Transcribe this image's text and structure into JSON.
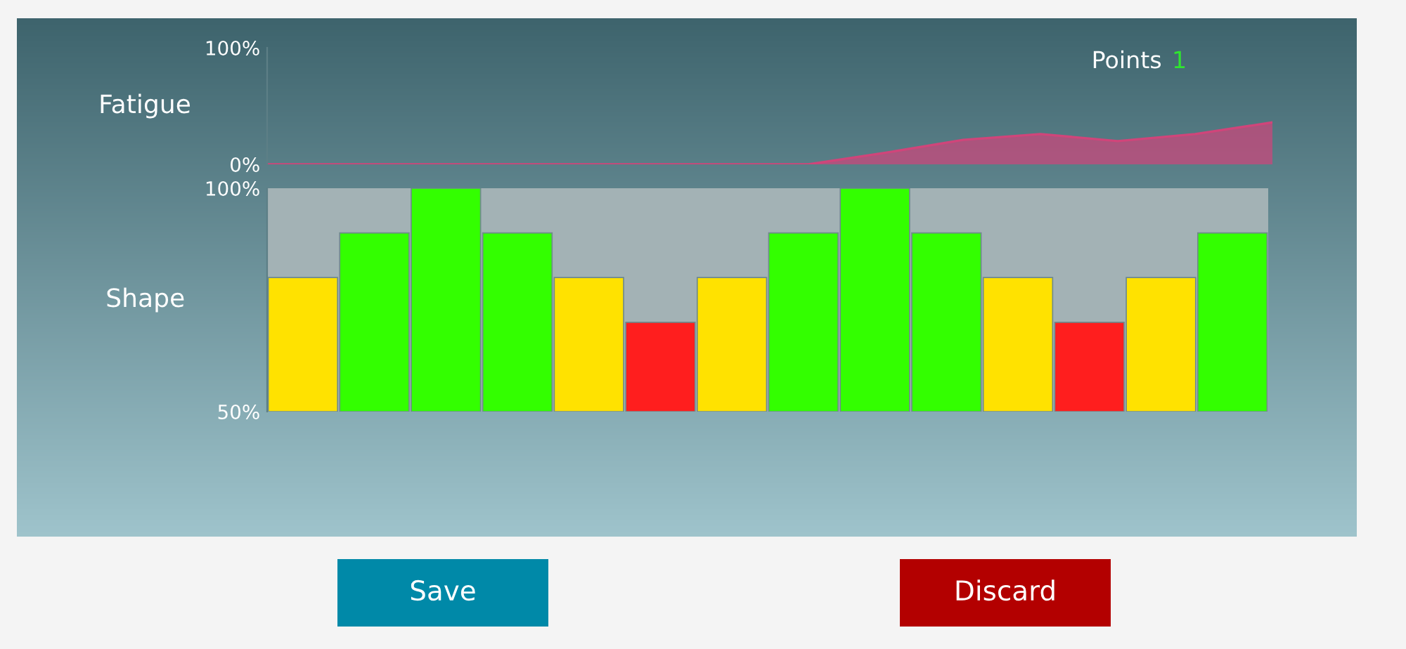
{
  "chart_data": [
    {
      "type": "area",
      "ylabel": "Fatigue",
      "categories": [
        null,
        null,
        null,
        null,
        null,
        null,
        null,
        null,
        null,
        null,
        null,
        null,
        null,
        null
      ],
      "series": [
        {
          "color": "#d0457a",
          "values": [
            0,
            0,
            0,
            0,
            0,
            0,
            0,
            0,
            10,
            21,
            26,
            20,
            26,
            36
          ]
        }
      ],
      "ylim": [
        0,
        100
      ],
      "yticks": [
        {
          "value": 0,
          "label": "0%"
        },
        {
          "value": 100,
          "label": "100%"
        }
      ],
      "tick_labels": "y",
      "grid": false,
      "annotations": [
        "Points",
        "1"
      ]
    },
    {
      "type": "bar",
      "ylabel": "Shape",
      "categories": [
        null,
        null,
        null,
        null,
        null,
        null,
        null,
        null,
        null,
        null,
        null,
        null,
        null,
        null
      ],
      "values": [
        80,
        90,
        100,
        90,
        80,
        70,
        80,
        90,
        100,
        90,
        80,
        70,
        80,
        90
      ],
      "colors": [
        "#ffe200",
        "#33ff00",
        "#33ff00",
        "#33ff00",
        "#ffe200",
        "#ff1e1e",
        "#ffe200",
        "#33ff00",
        "#33ff00",
        "#33ff00",
        "#ffe200",
        "#ff1e1e",
        "#ffe200",
        "#33ff00"
      ],
      "ylim": [
        50,
        100
      ],
      "yticks": [
        {
          "value": 50,
          "label": "50%"
        },
        {
          "value": 100,
          "label": "100%"
        }
      ],
      "tick_labels": "y",
      "grid": false,
      "annotations": [
        "Save",
        "Discard"
      ]
    }
  ]
}
